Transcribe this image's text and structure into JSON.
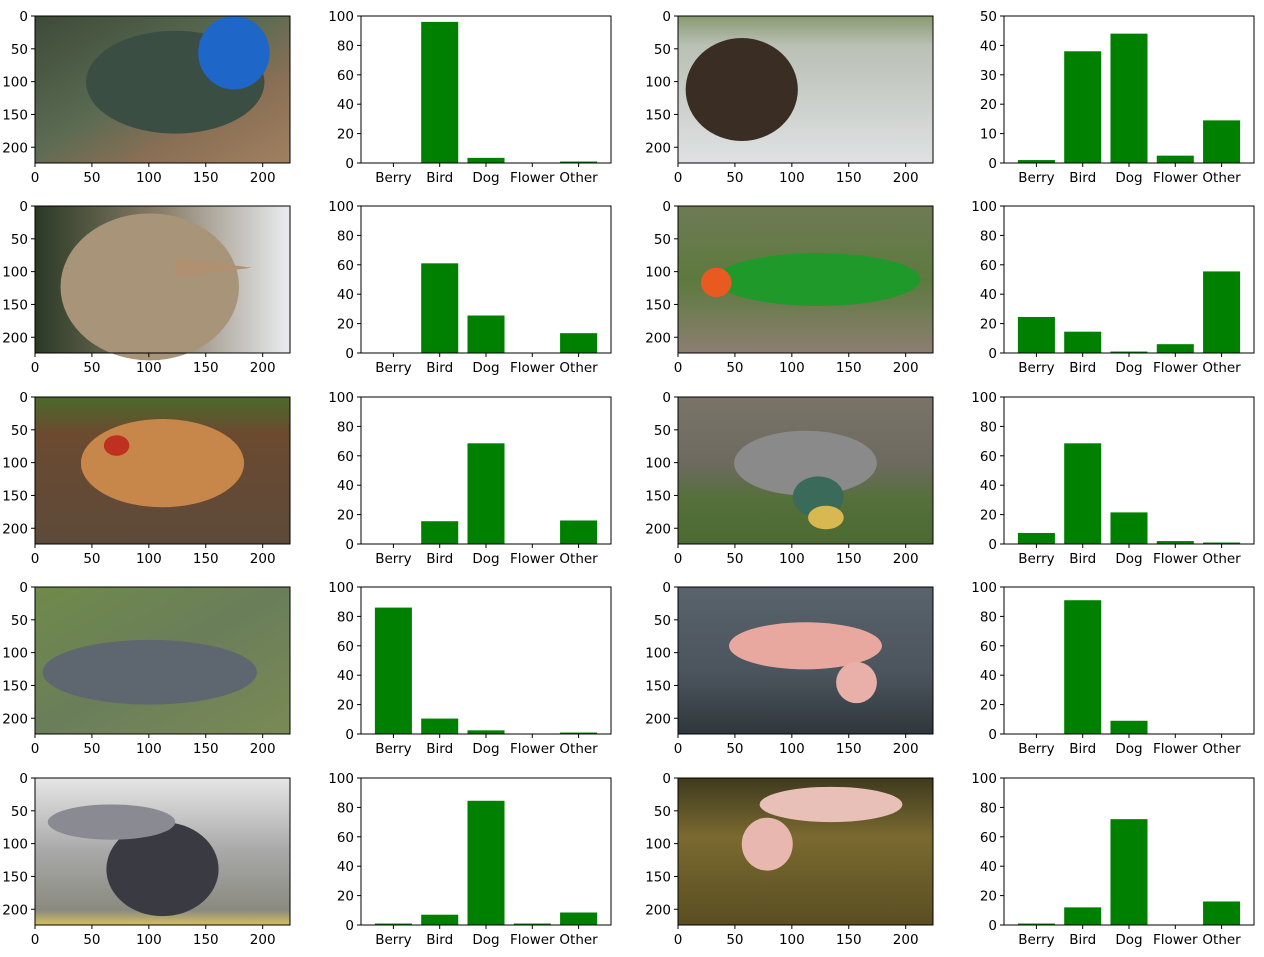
{
  "image_axes": {
    "x_ticks": [
      0,
      50,
      100,
      150,
      200
    ],
    "y_ticks": [
      0,
      50,
      100,
      150,
      200
    ],
    "xlim": [
      0,
      224
    ],
    "ylim": [
      224,
      0
    ]
  },
  "bar_color": "#008000",
  "chart_data": [
    {
      "type": "bar",
      "row": 0,
      "col": 0,
      "image": "peacock",
      "categories": [
        "Berry",
        "Bird",
        "Dog",
        "Flower",
        "Other"
      ],
      "values": [
        0,
        96,
        3.5,
        0,
        1
      ],
      "ylim": [
        0,
        100
      ],
      "yticks": [
        0,
        20,
        40,
        60,
        80,
        100
      ]
    },
    {
      "type": "bar",
      "row": 0,
      "col": 1,
      "image": "eagle",
      "categories": [
        "Berry",
        "Bird",
        "Dog",
        "Flower",
        "Other"
      ],
      "values": [
        1,
        38,
        44,
        2.5,
        14.5
      ],
      "ylim": [
        0,
        50
      ],
      "yticks": [
        0,
        10,
        20,
        30,
        40,
        50
      ]
    },
    {
      "type": "bar",
      "row": 1,
      "col": 0,
      "image": "ostrich",
      "categories": [
        "Berry",
        "Bird",
        "Dog",
        "Flower",
        "Other"
      ],
      "values": [
        0,
        61,
        25.5,
        0,
        13.5
      ],
      "ylim": [
        0,
        100
      ],
      "yticks": [
        0,
        20,
        40,
        60,
        80,
        100
      ]
    },
    {
      "type": "bar",
      "row": 1,
      "col": 1,
      "image": "parrot",
      "categories": [
        "Berry",
        "Bird",
        "Dog",
        "Flower",
        "Other"
      ],
      "values": [
        24.5,
        14.5,
        1,
        6,
        55.5
      ],
      "ylim": [
        0,
        100
      ],
      "yticks": [
        0,
        20,
        40,
        60,
        80,
        100
      ]
    },
    {
      "type": "bar",
      "row": 2,
      "col": 0,
      "image": "chicken",
      "categories": [
        "Berry",
        "Bird",
        "Dog",
        "Flower",
        "Other"
      ],
      "values": [
        0,
        15.5,
        68.5,
        0,
        16
      ],
      "ylim": [
        0,
        100
      ],
      "yticks": [
        0,
        20,
        40,
        60,
        80,
        100
      ]
    },
    {
      "type": "bar",
      "row": 2,
      "col": 1,
      "image": "duck",
      "categories": [
        "Berry",
        "Bird",
        "Dog",
        "Flower",
        "Other"
      ],
      "values": [
        7.5,
        68.5,
        21.5,
        2,
        1
      ],
      "ylim": [
        0,
        100
      ],
      "yticks": [
        0,
        20,
        40,
        60,
        80,
        100
      ]
    },
    {
      "type": "bar",
      "row": 3,
      "col": 0,
      "image": "pigeon",
      "categories": [
        "Berry",
        "Bird",
        "Dog",
        "Flower",
        "Other"
      ],
      "values": [
        86,
        10.5,
        2.5,
        0,
        1
      ],
      "ylim": [
        0,
        100
      ],
      "yticks": [
        0,
        20,
        40,
        60,
        80,
        100
      ]
    },
    {
      "type": "bar",
      "row": 3,
      "col": 1,
      "image": "flamingo",
      "categories": [
        "Berry",
        "Bird",
        "Dog",
        "Flower",
        "Other"
      ],
      "values": [
        0,
        91,
        9,
        0,
        0
      ],
      "ylim": [
        0,
        100
      ],
      "yticks": [
        0,
        20,
        40,
        60,
        80,
        100
      ]
    },
    {
      "type": "bar",
      "row": 4,
      "col": 0,
      "image": "pigeon-flying",
      "categories": [
        "Berry",
        "Bird",
        "Dog",
        "Flower",
        "Other"
      ],
      "values": [
        1,
        7,
        84.5,
        1,
        8.5
      ],
      "ylim": [
        0,
        100
      ],
      "yticks": [
        0,
        20,
        40,
        60,
        80,
        100
      ]
    },
    {
      "type": "bar",
      "row": 4,
      "col": 1,
      "image": "flamingo-water",
      "categories": [
        "Berry",
        "Bird",
        "Dog",
        "Flower",
        "Other"
      ],
      "values": [
        1,
        12,
        72,
        0,
        16
      ],
      "ylim": [
        0,
        100
      ],
      "yticks": [
        0,
        20,
        40,
        60,
        80,
        100
      ]
    }
  ]
}
